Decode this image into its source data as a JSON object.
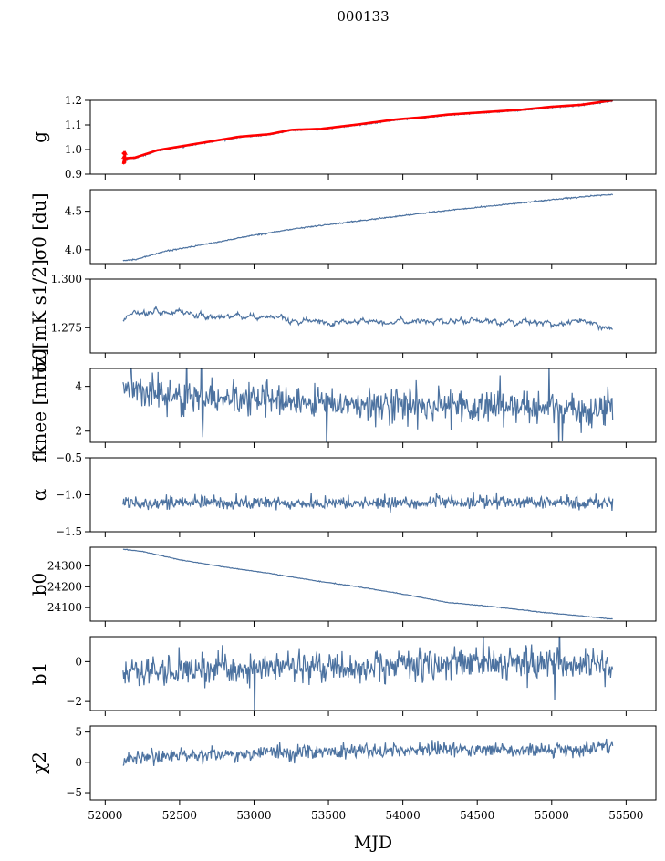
{
  "figure": {
    "suptitle": "000133",
    "xlabel": "MJD"
  },
  "chart_data": {
    "type": "line",
    "shared_x": {
      "xlim": [
        51900,
        55700
      ],
      "ticks": [
        52000,
        52500,
        53000,
        53500,
        54000,
        54500,
        55000,
        55500
      ],
      "data_range": [
        52120,
        55410
      ]
    },
    "colors": {
      "series": "#4c72a0",
      "fit": "#ff0000"
    },
    "panels": [
      {
        "key": "g",
        "ylabel": "g",
        "ylim": [
          0.9,
          1.2
        ],
        "yticks": [
          0.9,
          1.0,
          1.1,
          1.2
        ],
        "ytick_labels": [
          "0.9",
          "1.0",
          "1.1",
          "1.2"
        ],
        "trend": [
          [
            52120,
            0.962
          ],
          [
            52200,
            0.965
          ],
          [
            52350,
            0.995
          ],
          [
            52600,
            1.02
          ],
          [
            52900,
            1.05
          ],
          [
            53100,
            1.06
          ],
          [
            53250,
            1.078
          ],
          [
            53450,
            1.082
          ],
          [
            53700,
            1.1
          ],
          [
            53950,
            1.12
          ],
          [
            54150,
            1.13
          ],
          [
            54300,
            1.14
          ],
          [
            54600,
            1.152
          ],
          [
            54800,
            1.16
          ],
          [
            55000,
            1.172
          ],
          [
            55200,
            1.18
          ],
          [
            55410,
            1.198
          ]
        ],
        "noise": 0.0015,
        "has_fit_overlay": true
      },
      {
        "key": "sigma0_du",
        "ylabel": "σ0 [du]",
        "ylim": [
          3.82,
          4.78
        ],
        "yticks": [
          4.0,
          4.5
        ],
        "ytick_labels": [
          "4.0",
          "4.5"
        ],
        "trend": [
          [
            52120,
            3.86
          ],
          [
            52200,
            3.87
          ],
          [
            52400,
            3.98
          ],
          [
            52700,
            4.08
          ],
          [
            53000,
            4.19
          ],
          [
            53300,
            4.28
          ],
          [
            53600,
            4.35
          ],
          [
            53900,
            4.42
          ],
          [
            54200,
            4.49
          ],
          [
            54500,
            4.55
          ],
          [
            54800,
            4.61
          ],
          [
            55100,
            4.67
          ],
          [
            55410,
            4.72
          ]
        ],
        "noise": 0.004
      },
      {
        "key": "sigma0_mK",
        "ylabel": "σ0[mK s1/2]",
        "ylim": [
          1.262,
          1.3
        ],
        "yticks": [
          1.275,
          1.3
        ],
        "ytick_labels": [
          "1.275",
          "1.300"
        ],
        "trend": [
          [
            52120,
            1.2795
          ],
          [
            52200,
            1.284
          ],
          [
            52400,
            1.2828
          ],
          [
            52700,
            1.281
          ],
          [
            53000,
            1.2805
          ],
          [
            53300,
            1.279
          ],
          [
            53600,
            1.2778
          ],
          [
            54000,
            1.278
          ],
          [
            54400,
            1.278
          ],
          [
            54700,
            1.2778
          ],
          [
            55000,
            1.2762
          ],
          [
            55200,
            1.2775
          ],
          [
            55410,
            1.2737
          ]
        ],
        "noise": 0.0009
      },
      {
        "key": "fknee",
        "ylabel": "fknee [mHz]",
        "ylim": [
          1.5,
          4.8
        ],
        "yticks": [
          2,
          4
        ],
        "ytick_labels": [
          "2",
          "4"
        ],
        "trend": [
          [
            52120,
            4.0
          ],
          [
            52400,
            3.6
          ],
          [
            52800,
            3.45
          ],
          [
            53200,
            3.35
          ],
          [
            53600,
            3.25
          ],
          [
            54000,
            3.15
          ],
          [
            54500,
            3.05
          ],
          [
            55000,
            2.95
          ],
          [
            55410,
            2.9
          ]
        ],
        "noise": 0.35
      },
      {
        "key": "alpha",
        "ylabel": "α",
        "ylim": [
          -1.5,
          -0.5
        ],
        "yticks": [
          -1.5,
          -1.0,
          -0.5
        ],
        "ytick_labels": [
          "−1.5",
          "−1.0",
          "−0.5"
        ],
        "trend": [
          [
            52120,
            -1.1
          ],
          [
            53500,
            -1.12
          ],
          [
            54500,
            -1.1
          ],
          [
            55410,
            -1.11
          ]
        ],
        "noise": 0.045
      },
      {
        "key": "b0",
        "ylabel": "b0",
        "ylim": [
          24035,
          24390
        ],
        "yticks": [
          24100,
          24200,
          24300
        ],
        "ytick_labels": [
          "24100",
          "24200",
          "24300"
        ],
        "trend": [
          [
            52120,
            24380
          ],
          [
            52250,
            24370
          ],
          [
            52500,
            24330
          ],
          [
            52800,
            24295
          ],
          [
            53100,
            24265
          ],
          [
            53400,
            24230
          ],
          [
            53700,
            24200
          ],
          [
            54000,
            24165
          ],
          [
            54300,
            24125
          ],
          [
            54600,
            24105
          ],
          [
            54900,
            24080
          ],
          [
            55200,
            24060
          ],
          [
            55410,
            24045
          ]
        ],
        "noise": 0.8
      },
      {
        "key": "b1",
        "ylabel": "b1",
        "ylim": [
          -2.45,
          1.25
        ],
        "yticks": [
          -2,
          0
        ],
        "ytick_labels": [
          "−2",
          "0"
        ],
        "trend": [
          [
            52120,
            -0.5
          ],
          [
            52600,
            -0.5
          ],
          [
            53200,
            -0.2
          ],
          [
            53800,
            -0.25
          ],
          [
            54400,
            -0.05
          ],
          [
            55000,
            -0.05
          ],
          [
            55410,
            -0.25
          ]
        ],
        "noise": 0.38
      },
      {
        "key": "chi2",
        "ylabel": "χ2",
        "ylim": [
          -6.2,
          6.0
        ],
        "yticks": [
          -5,
          0,
          5
        ],
        "ytick_labels": [
          "−5",
          "0",
          "5"
        ],
        "trend": [
          [
            52120,
            0.3
          ],
          [
            52300,
            1.0
          ],
          [
            52700,
            1.3
          ],
          [
            53200,
            1.6
          ],
          [
            53700,
            1.9
          ],
          [
            54200,
            2.1
          ],
          [
            54700,
            2.0
          ],
          [
            55100,
            1.9
          ],
          [
            55410,
            2.8
          ]
        ],
        "noise": 0.6
      }
    ]
  }
}
